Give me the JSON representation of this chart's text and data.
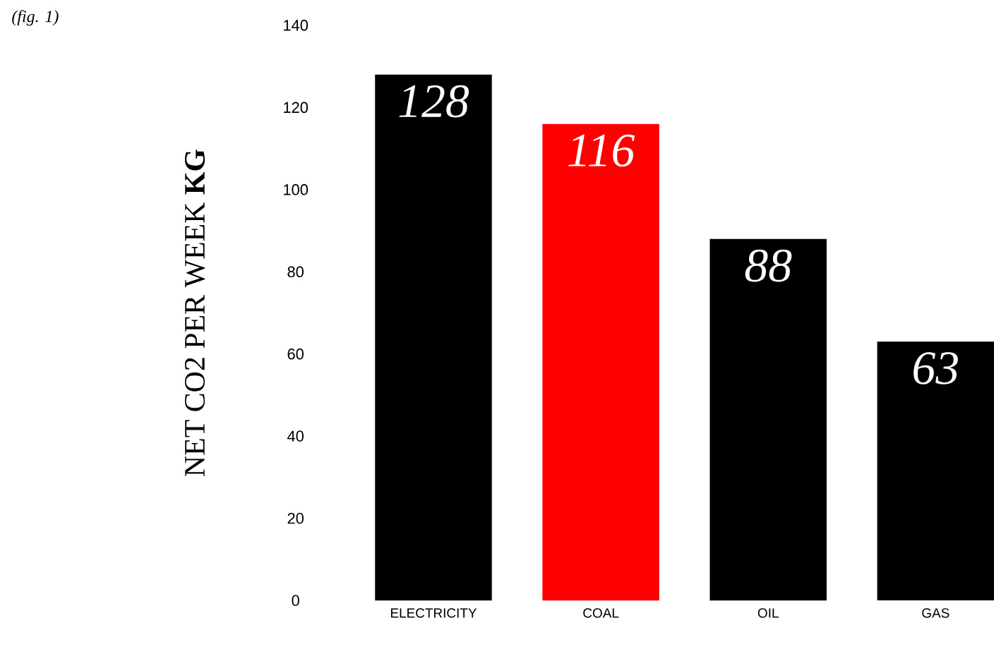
{
  "chart_data": {
    "type": "bar",
    "ylabel": "NET CO2 PER WEEK **KG**",
    "annotations": [
      "(fig. 1)"
    ],
    "categories": [
      "ELECTRICITY",
      "COAL",
      "OIL",
      "GAS"
    ],
    "values": [
      128,
      116,
      88,
      63
    ],
    "colors": [
      "#000000",
      "#ff0000",
      "#000000",
      "#000000"
    ],
    "ylim": [
      0,
      140
    ],
    "yticks": [
      0,
      20,
      40,
      60,
      80,
      100,
      120,
      140
    ],
    "data_labels": true
  }
}
